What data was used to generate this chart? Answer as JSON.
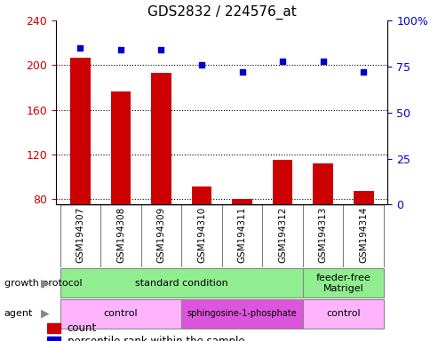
{
  "title": "GDS2832 / 224576_at",
  "samples": [
    "GSM194307",
    "GSM194308",
    "GSM194309",
    "GSM194310",
    "GSM194311",
    "GSM194312",
    "GSM194313",
    "GSM194314"
  ],
  "counts": [
    207,
    176,
    193,
    91,
    80,
    115,
    112,
    87
  ],
  "percentiles": [
    85,
    84,
    84,
    76,
    72,
    78,
    78,
    72
  ],
  "ylim_left": [
    75,
    240
  ],
  "yticks_left": [
    80,
    120,
    160,
    200,
    240
  ],
  "ylim_right": [
    0,
    100
  ],
  "yticks_right": [
    0,
    25,
    50,
    75,
    100
  ],
  "bar_color": "#cc0000",
  "dot_color": "#0000cc",
  "growth_protocol_rows": [
    {
      "label": "standard condition",
      "start": 0,
      "end": 6,
      "color": "#90ee90"
    },
    {
      "label": "feeder-free\nMatrigel",
      "start": 6,
      "end": 8,
      "color": "#90ee90"
    }
  ],
  "agent_rows": [
    {
      "label": "control",
      "start": 0,
      "end": 3,
      "color": "#ffb3ff"
    },
    {
      "label": "sphingosine-1-phosphate",
      "start": 3,
      "end": 6,
      "color": "#dd55dd"
    },
    {
      "label": "control",
      "start": 6,
      "end": 8,
      "color": "#ffb3ff"
    }
  ],
  "tick_label_color_left": "#cc0000",
  "tick_label_color_right": "#0000cc",
  "xtick_bg_color": "#c8c8c8",
  "bar_width": 0.5
}
